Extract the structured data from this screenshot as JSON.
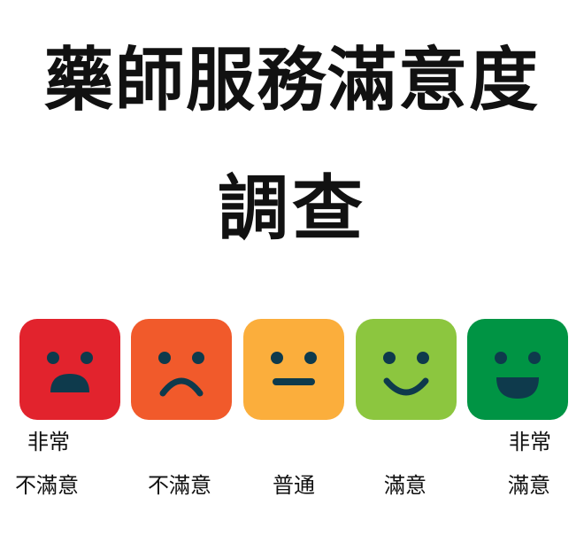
{
  "title": {
    "line1": "藥師服務滿意度",
    "line2": "調查"
  },
  "scale": [
    {
      "id": "very-dissatisfied",
      "label_top": "非常",
      "label_bottom": "不滿意",
      "color": "#e2232d",
      "icon": "very-sad-face-icon"
    },
    {
      "id": "dissatisfied",
      "label_top": "",
      "label_bottom": "不滿意",
      "color": "#f15a2b",
      "icon": "sad-face-icon"
    },
    {
      "id": "neutral",
      "label_top": "",
      "label_bottom": "普通",
      "color": "#fbae3c",
      "icon": "neutral-face-icon"
    },
    {
      "id": "satisfied",
      "label_top": "",
      "label_bottom": "滿意",
      "color": "#8cc63f",
      "icon": "smile-face-icon"
    },
    {
      "id": "very-satisfied",
      "label_top": "非常",
      "label_bottom": "滿意",
      "color": "#009444",
      "icon": "grin-face-icon"
    }
  ],
  "feature_color": "#0e3a4c"
}
